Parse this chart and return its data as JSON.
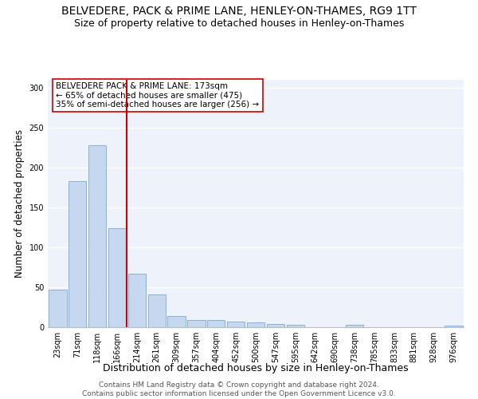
{
  "title": "BELVEDERE, PACK & PRIME LANE, HENLEY-ON-THAMES, RG9 1TT",
  "subtitle": "Size of property relative to detached houses in Henley-on-Thames",
  "xlabel": "Distribution of detached houses by size in Henley-on-Thames",
  "ylabel": "Number of detached properties",
  "categories": [
    "23sqm",
    "71sqm",
    "118sqm",
    "166sqm",
    "214sqm",
    "261sqm",
    "309sqm",
    "357sqm",
    "404sqm",
    "452sqm",
    "500sqm",
    "547sqm",
    "595sqm",
    "642sqm",
    "690sqm",
    "738sqm",
    "785sqm",
    "833sqm",
    "881sqm",
    "928sqm",
    "976sqm"
  ],
  "values": [
    47,
    183,
    228,
    124,
    67,
    41,
    14,
    9,
    9,
    7,
    6,
    4,
    3,
    0,
    0,
    3,
    0,
    0,
    0,
    0,
    2
  ],
  "bar_color": "#c5d8f0",
  "bar_edge_color": "#8ab0d8",
  "vline_x_pos": 3.5,
  "vline_color": "#cc0000",
  "annotation_text_line1": "BELVEDERE PACK & PRIME LANE: 173sqm",
  "annotation_text_line2": "← 65% of detached houses are smaller (475)",
  "annotation_text_line3": "35% of semi-detached houses are larger (256) →",
  "ylim": [
    0,
    310
  ],
  "yticks": [
    0,
    50,
    100,
    150,
    200,
    250,
    300
  ],
  "background_color": "#eef2fb",
  "grid_color": "#ffffff",
  "footer": "Contains HM Land Registry data © Crown copyright and database right 2024.\nContains public sector information licensed under the Open Government Licence v3.0.",
  "title_fontsize": 10,
  "subtitle_fontsize": 9,
  "xlabel_fontsize": 9,
  "ylabel_fontsize": 8.5,
  "tick_fontsize": 7,
  "annotation_fontsize": 7.5,
  "footer_fontsize": 6.5
}
